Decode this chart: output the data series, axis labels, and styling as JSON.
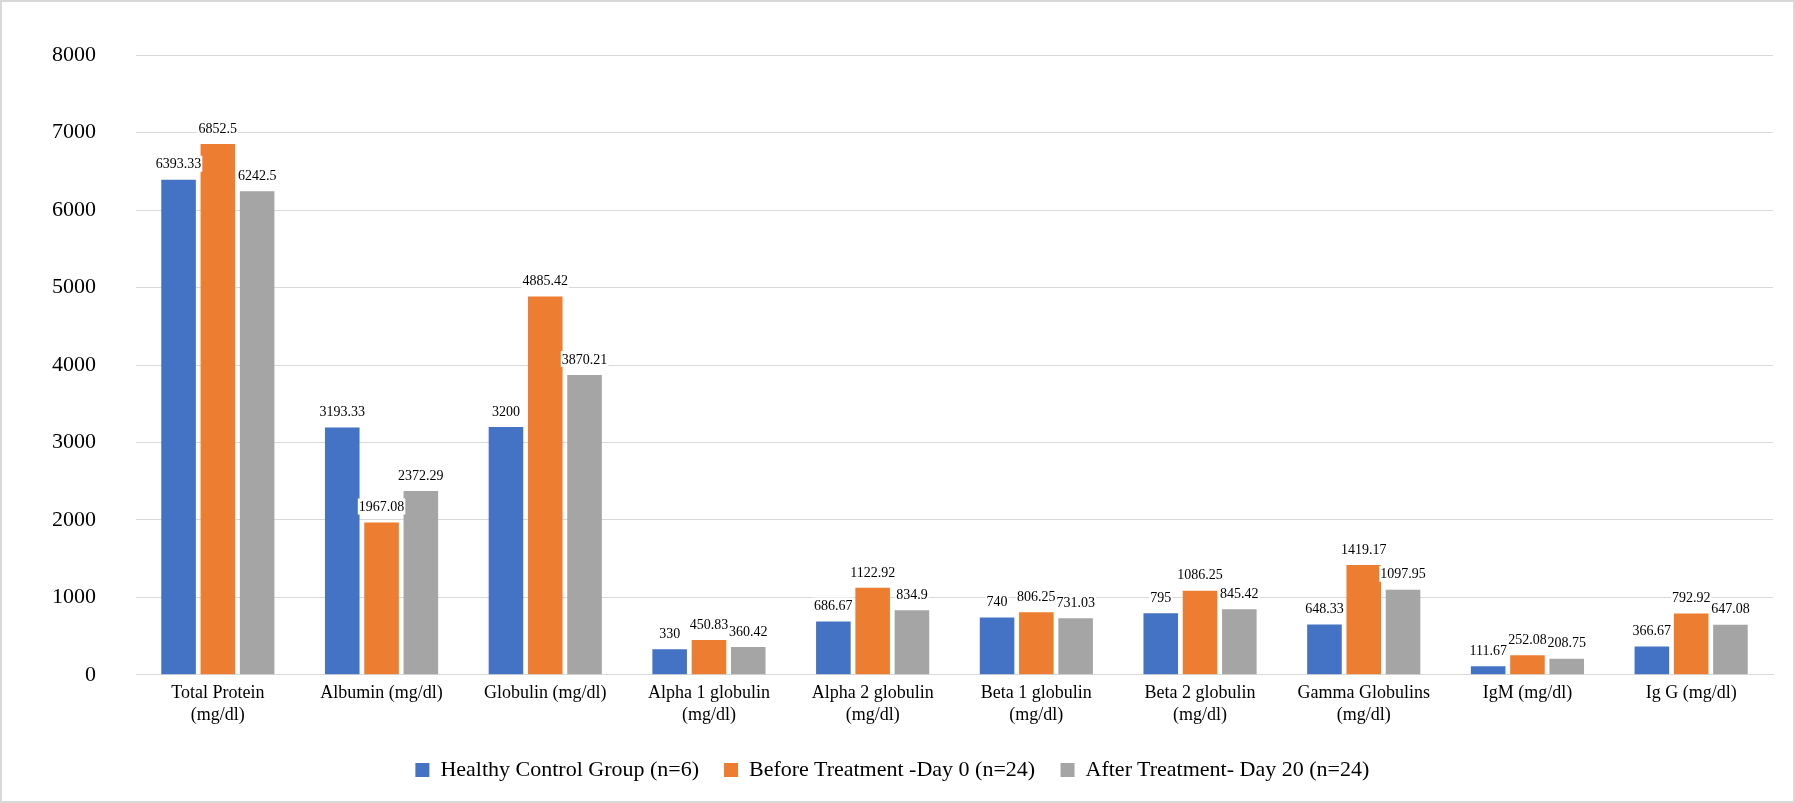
{
  "chart_data": {
    "type": "bar",
    "categories": [
      "Total Protein (mg/dl)",
      "Albumin (mg/dl)",
      "Globulin (mg/dl)",
      "Alpha 1 globulin (mg/dl)",
      "Alpha 2 globulin (mg/dl)",
      "Beta 1 globulin (mg/dl)",
      "Beta 2 globulin (mg/dl)",
      "Gamma Globulins (mg/dl)",
      "IgM (mg/dl)",
      "Ig G (mg/dl)"
    ],
    "series": [
      {
        "name": "Healthy Control Group (n=6)",
        "color": "#4472c4",
        "values": [
          6393.33,
          3193.33,
          3200,
          330,
          686.67,
          740,
          795,
          648.33,
          111.67,
          366.67
        ]
      },
      {
        "name": "Before Treatment -Day 0 (n=24)",
        "color": "#ed7d31",
        "values": [
          6852.5,
          1967.08,
          4885.42,
          450.83,
          1122.92,
          806.25,
          1086.25,
          1419.17,
          252.08,
          792.92
        ]
      },
      {
        "name": "After Treatment- Day 20 (n=24)",
        "color": "#a5a5a5",
        "values": [
          6242.5,
          2372.29,
          3870.21,
          360.42,
          834.9,
          731.03,
          845.42,
          1097.95,
          208.75,
          647.08
        ]
      }
    ],
    "ylim": [
      0,
      8000
    ],
    "yticks": [
      0,
      1000,
      2000,
      3000,
      4000,
      5000,
      6000,
      7000,
      8000
    ],
    "grid": "y",
    "legend": "bottom",
    "data_labels": true
  }
}
